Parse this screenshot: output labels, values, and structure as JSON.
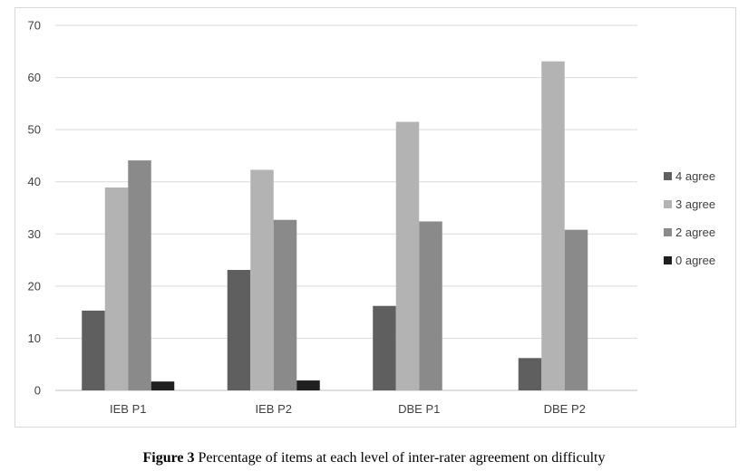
{
  "caption": {
    "label": "Figure 3",
    "text": " Percentage of items at each level of inter-rater agreement on difficulty"
  },
  "chart_data": {
    "type": "bar",
    "categories": [
      "IEB P1",
      "IEB P2",
      "DBE P1",
      "DBE P2"
    ],
    "series": [
      {
        "name": "4 agree",
        "color": "#5f5f5f",
        "values": [
          15.3,
          23.1,
          16.2,
          6.2
        ]
      },
      {
        "name": "3 agree",
        "color": "#b3b3b3",
        "values": [
          38.9,
          42.3,
          51.5,
          63.1
        ]
      },
      {
        "name": "2 agree",
        "color": "#8a8a8a",
        "values": [
          44.1,
          32.7,
          32.4,
          30.8
        ]
      },
      {
        "name": "0 agree",
        "color": "#1f1f1f",
        "values": [
          1.7,
          1.9,
          0,
          0
        ]
      }
    ],
    "ylim": [
      0,
      70
    ],
    "yticks": [
      0,
      10,
      20,
      30,
      40,
      50,
      60,
      70
    ],
    "grid": true,
    "legend": "right"
  }
}
